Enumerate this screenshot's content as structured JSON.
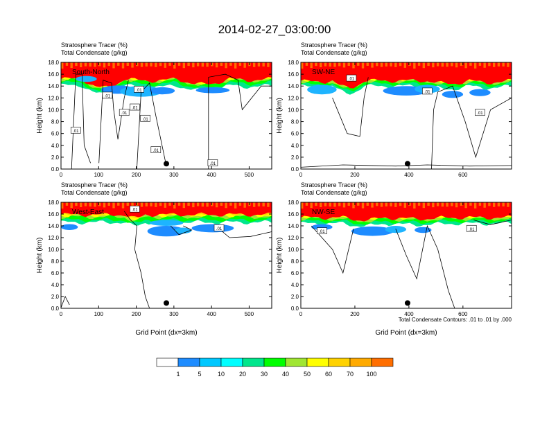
{
  "figure": {
    "title": "2014-02-27_03:00:00",
    "contour_note": "Total Condensate Contours: .01 to .01 by .000"
  },
  "chart_data": [
    {
      "type": "heatmap",
      "label": "South-North",
      "field_labels": [
        "Stratosphere Tracer   (%)",
        "Total Condensate   (g/kg)"
      ],
      "ylabel": "Height (km)",
      "xlabel": "",
      "xlim": [
        0,
        560
      ],
      "ylim": [
        0,
        18
      ],
      "xticks": [
        0,
        100,
        200,
        300,
        400,
        500
      ],
      "yticks": [
        "0.0",
        "2.0",
        "4.0",
        "6.0",
        "8.0",
        "10.0",
        "12.0",
        "14.0",
        "16.0",
        "18.0"
      ],
      "marker_x": 280,
      "contour_labels": [
        ".01",
        ".01",
        ".01",
        ".01",
        ".01",
        ".01",
        ".01",
        ".01"
      ]
    },
    {
      "type": "heatmap",
      "label": "SW-NE",
      "field_labels": [
        "Stratosphere Tracer   (%)",
        "Total Condensate   (g/kg)"
      ],
      "ylabel": "Height (km)",
      "xlabel": "",
      "xlim": [
        0,
        780
      ],
      "ylim": [
        0,
        18
      ],
      "xticks": [
        0,
        200,
        400,
        600
      ],
      "yticks": [
        "0.0",
        "2.0",
        "4.0",
        "6.0",
        "8.0",
        "10.0",
        "12.0",
        "14.0",
        "16.0",
        "18.0"
      ],
      "marker_x": 395,
      "contour_labels": [
        ".01",
        ".01",
        ".01"
      ]
    },
    {
      "type": "heatmap",
      "label": "West-East",
      "field_labels": [
        "Stratosphere Tracer   (%)",
        "Total Condensate   (g/kg)"
      ],
      "ylabel": "Height (km)",
      "xlabel": "Grid Point (dx=3km)",
      "xlim": [
        0,
        560
      ],
      "ylim": [
        0,
        18
      ],
      "xticks": [
        0,
        100,
        200,
        300,
        400,
        500
      ],
      "yticks": [
        "0.0",
        "2.0",
        "4.0",
        "6.0",
        "8.0",
        "10.0",
        "12.0",
        "14.0",
        "16.0",
        "18.0"
      ],
      "marker_x": 280,
      "contour_labels": [
        ".01",
        ".01"
      ]
    },
    {
      "type": "heatmap",
      "label": "NW-SE",
      "field_labels": [
        "Stratosphere Tracer   (%)",
        "Total Condensate   (g/kg)"
      ],
      "ylabel": "Height (km)",
      "xlabel": "Grid Point (dx=3km)",
      "xlim": [
        0,
        780
      ],
      "ylim": [
        0,
        18
      ],
      "xticks": [
        0,
        200,
        400,
        600
      ],
      "yticks": [
        "0.0",
        "2.0",
        "4.0",
        "6.0",
        "8.0",
        "10.0",
        "12.0",
        "14.0",
        "16.0",
        "18.0"
      ],
      "marker_x": 395,
      "contour_labels": [
        ".01",
        ".01"
      ]
    }
  ],
  "colorbar": {
    "labels": [
      "1",
      "5",
      "10",
      "20",
      "30",
      "40",
      "50",
      "60",
      "70",
      "100"
    ],
    "colors": [
      "#ffffff",
      "#1e8cff",
      "#1eb4ff",
      "#00ffff",
      "#00e68c",
      "#00ff00",
      "#a0e632",
      "#ffff00",
      "#ffd200",
      "#ffaa00",
      "#ff6e00",
      "#ff0000"
    ]
  }
}
